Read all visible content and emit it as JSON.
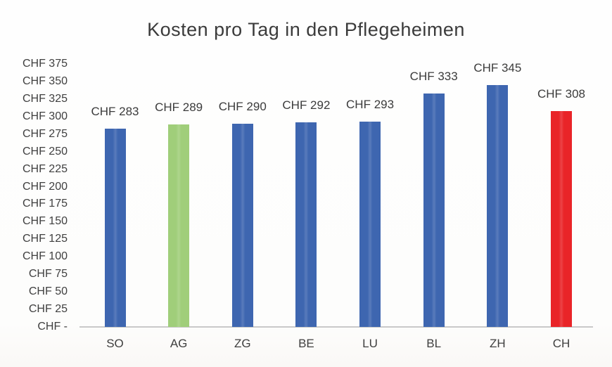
{
  "chart_data": {
    "type": "bar",
    "title": "Kosten pro Tag in den Pflegeheimen",
    "categories": [
      "SO",
      "AG",
      "ZG",
      "BE",
      "LU",
      "BL",
      "ZH",
      "CH"
    ],
    "values": [
      283,
      289,
      290,
      292,
      293,
      333,
      345,
      308
    ],
    "value_labels": [
      "CHF 283",
      "CHF 289",
      "CHF 290",
      "CHF 292",
      "CHF 293",
      "CHF 333",
      "CHF 345",
      "CHF 308"
    ],
    "bar_colors": [
      "#3e66b0",
      "#a0ce7a",
      "#3e66b0",
      "#3e66b0",
      "#3e66b0",
      "#3e66b0",
      "#3e66b0",
      "#e92428"
    ],
    "default_bar_color": "#3e66b0",
    "highlight_green_category": "AG",
    "highlight_red_category": "CH",
    "xlabel": "",
    "ylabel": "",
    "ylim": [
      0,
      375
    ],
    "ytick_values": [
      375,
      350,
      325,
      300,
      275,
      250,
      225,
      200,
      175,
      150,
      125,
      100,
      75,
      50,
      25,
      0
    ],
    "ytick_labels": [
      "CHF 375",
      "CHF 350",
      "CHF 325",
      "CHF 300",
      "CHF 275",
      "CHF 250",
      "CHF 225",
      "CHF 200",
      "CHF 175",
      "CHF 150",
      "CHF 125",
      "CHF 100",
      "CHF 75",
      "CHF 50",
      "CHF 25",
      "CHF -"
    ],
    "grid": false,
    "legend": false,
    "axis_line_color": "#c9c9c9",
    "text_color": "#3b3b3b"
  }
}
